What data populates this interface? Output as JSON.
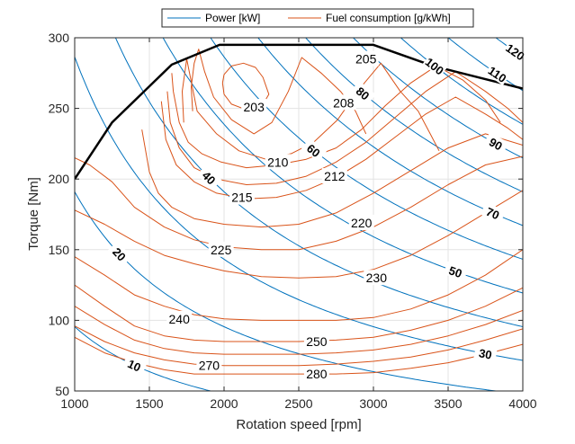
{
  "chart_data": {
    "type": "contour",
    "xlabel": "Rotation speed [rpm]",
    "ylabel": "Torque [Nm]",
    "xlim": [
      1000,
      4000
    ],
    "ylim": [
      50,
      300
    ],
    "xticks": [
      1000,
      1500,
      2000,
      2500,
      3000,
      3500,
      4000
    ],
    "yticks": [
      50,
      100,
      150,
      200,
      250,
      300
    ],
    "grid": true,
    "legend_position": "top",
    "legend": [
      {
        "name": "Power [kW]",
        "color": "#0072BD"
      },
      {
        "name": "Fuel consumption [g/kWh]",
        "color": "#D95319"
      }
    ],
    "colors": {
      "power": "#0072BD",
      "fuel": "#D95319",
      "max_torque": "#000000"
    },
    "max_torque_curve": {
      "x": [
        1000,
        1250,
        1650,
        1970,
        2000,
        3000,
        3400,
        4000
      ],
      "y": [
        200,
        240,
        281,
        295,
        295,
        295,
        280,
        264
      ]
    },
    "power_contours": [
      {
        "value": 10,
        "label": "10",
        "label_at": [
          1400
        ]
      },
      {
        "value": 20,
        "label": "20",
        "label_at": [
          1300
        ]
      },
      {
        "value": 30,
        "label": "30",
        "label_at": [
          3750
        ]
      },
      {
        "value": 40,
        "label": "40",
        "label_at": [
          1900
        ]
      },
      {
        "value": 50,
        "label": "50",
        "label_at": [
          3550
        ]
      },
      {
        "value": 60,
        "label": "60",
        "label_at": [
          2600
        ]
      },
      {
        "value": 70,
        "label": "70",
        "label_at": [
          3800
        ]
      },
      {
        "value": 80,
        "label": "80",
        "label_at": [
          2930
        ]
      },
      {
        "value": 90,
        "label": "90",
        "label_at": [
          3820
        ]
      },
      {
        "value": 100,
        "label": "100",
        "label_at": [
          3410
        ]
      },
      {
        "value": 110,
        "label": "110",
        "label_at": [
          3830
        ]
      },
      {
        "value": 120,
        "label": "120",
        "label_at": [
          3950
        ]
      }
    ],
    "fuel_contours": [
      {
        "value": 203,
        "label": "203",
        "x": [
          2000,
          1990,
          2000,
          2050,
          2130,
          2210,
          2260,
          2300,
          2250,
          2150,
          2050,
          2000
        ],
        "y": [
          260,
          268,
          274,
          280,
          282,
          279,
          272,
          260,
          251,
          249,
          253,
          260
        ],
        "label_pos": [
          2200,
          251
        ]
      },
      {
        "value": 205,
        "label": "205",
        "x": [
          1790,
          1780,
          1800,
          1830,
          1870,
          1930,
          2050,
          2200,
          2320,
          2430,
          2520,
          2650,
          2780,
          2880,
          2950
        ],
        "y": [
          248,
          265,
          282,
          292,
          276,
          258,
          242,
          232,
          240,
          262,
          286,
          275,
          262,
          248,
          232
        ],
        "label_pos": [
          2950,
          285
        ]
      },
      {
        "value": 208,
        "label": "208",
        "x": [
          1730,
          1720,
          1750,
          1820,
          1950,
          2100,
          2280,
          2450,
          2600,
          2760,
          2900,
          3050,
          3180,
          3300,
          3380,
          3440
        ],
        "y": [
          240,
          262,
          285,
          248,
          232,
          220,
          214,
          218,
          226,
          242,
          263,
          282,
          262,
          248,
          232,
          220
        ],
        "label_pos": [
          2800,
          254
        ]
      },
      {
        "value": 210,
        "label": "210",
        "x": [
          1650,
          1660,
          1700,
          1760,
          1850,
          1980,
          2150,
          2350,
          2550,
          2750,
          2920,
          3080,
          3250,
          3420,
          3600,
          3750,
          3850
        ],
        "y": [
          275,
          262,
          240,
          226,
          218,
          212,
          208,
          210,
          214,
          222,
          235,
          252,
          268,
          280,
          270,
          256,
          240
        ],
        "label_pos": [
          2360,
          212
        ]
      },
      {
        "value": 212,
        "label": "212",
        "x": [
          1620,
          1640,
          1700,
          1800,
          1950,
          2150,
          2350,
          2550,
          2750,
          2950,
          3150,
          3350,
          3550,
          3750,
          3900,
          4000
        ],
        "y": [
          262,
          240,
          222,
          208,
          200,
          196,
          197,
          202,
          212,
          226,
          244,
          262,
          276,
          262,
          250,
          240
        ],
        "label_pos": [
          2740,
          202
        ]
      },
      {
        "value": 215,
        "label": "215",
        "x": [
          1580,
          1610,
          1680,
          1800,
          1950,
          2150,
          2350,
          2550,
          2750,
          2950,
          3150,
          3350,
          3550,
          3750,
          3900,
          4000
        ],
        "y": [
          255,
          228,
          210,
          198,
          190,
          186,
          187,
          192,
          201,
          214,
          230,
          246,
          258,
          246,
          236,
          228
        ],
        "label_pos": [
          2120,
          187
        ]
      },
      {
        "value": 220,
        "label": "220",
        "x": [
          1450,
          1500,
          1560,
          1650,
          1800,
          2000,
          2250,
          2500,
          2750,
          3000,
          3250,
          3500,
          3750,
          4000
        ],
        "y": [
          235,
          205,
          190,
          180,
          172,
          168,
          166,
          168,
          176,
          190,
          206,
          222,
          232,
          224
        ],
        "label_pos": [
          2920,
          169
        ]
      },
      {
        "value": 225,
        "label": "225",
        "x": [
          1000,
          1100,
          1250,
          1400,
          1600,
          1800,
          2000,
          2250,
          2500,
          2750,
          3000,
          3250,
          3500,
          3750,
          4000
        ],
        "y": [
          215,
          210,
          198,
          180,
          166,
          157,
          152,
          150,
          150,
          156,
          166,
          180,
          196,
          210,
          216
        ],
        "label_pos": [
          1980,
          150
        ]
      },
      {
        "value": 230,
        "label": "230",
        "x": [
          1000,
          1200,
          1400,
          1600,
          1800,
          2000,
          2250,
          2500,
          2750,
          3000,
          3250,
          3500,
          3750,
          4000
        ],
        "y": [
          178,
          168,
          156,
          146,
          140,
          135,
          131,
          130,
          131,
          136,
          146,
          160,
          176,
          192
        ],
        "label_pos": [
          3020,
          130
        ]
      },
      {
        "value": 240,
        "label": "240",
        "x": [
          1000,
          1200,
          1400,
          1600,
          1800,
          2000,
          2250,
          2500,
          2750,
          3000,
          3250,
          3500,
          3750,
          4000
        ],
        "y": [
          145,
          132,
          118,
          110,
          104,
          101,
          100,
          100,
          100,
          102,
          108,
          118,
          132,
          150
        ],
        "label_pos": [
          1700,
          101
        ]
      },
      {
        "value": 250,
        "label": "250",
        "x": [
          1000,
          1200,
          1400,
          1600,
          1800,
          2000,
          2250,
          2500,
          2750,
          3000,
          3250,
          3500,
          3750,
          4000
        ],
        "y": [
          125,
          110,
          96,
          89,
          86,
          85,
          85,
          85,
          86,
          88,
          93,
          100,
          110,
          123
        ],
        "label_pos": [
          2620,
          85
        ]
      },
      {
        "value": 260,
        "label": "",
        "x": [
          1000,
          1200,
          1400,
          1600,
          1800,
          2000,
          2250,
          2500,
          2750,
          3000,
          3250,
          3500,
          3750,
          4000
        ],
        "y": [
          110,
          97,
          86,
          80,
          77,
          76,
          76,
          76,
          77,
          79,
          83,
          89,
          97,
          107
        ],
        "label_pos": null
      },
      {
        "value": 270,
        "label": "270",
        "x": [
          1000,
          1200,
          1400,
          1600,
          1800,
          2000,
          2250,
          2500,
          2750,
          3000,
          3250,
          3500,
          3750,
          4000
        ],
        "y": [
          96,
          85,
          77,
          72,
          69,
          68,
          68,
          68,
          69,
          71,
          74,
          79,
          86,
          94
        ],
        "label_pos": [
          1900,
          68
        ]
      },
      {
        "value": 280,
        "label": "280",
        "x": [
          1000,
          1200,
          1400,
          1600,
          1800,
          2000,
          2250,
          2500,
          2750,
          3000,
          3250,
          3500,
          3750,
          4000
        ],
        "y": [
          88,
          77,
          70,
          65,
          62,
          62,
          62,
          62,
          62,
          63,
          66,
          70,
          76,
          83
        ],
        "label_pos": [
          2620,
          62
        ]
      }
    ]
  }
}
